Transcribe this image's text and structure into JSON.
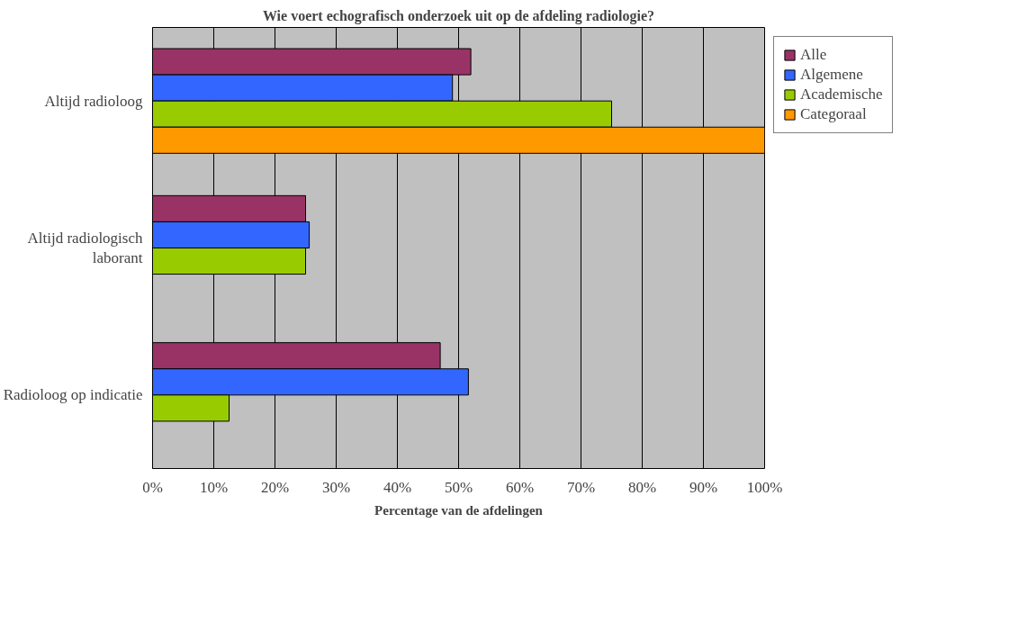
{
  "chart_data": {
    "type": "bar",
    "orientation": "horizontal",
    "title": "Wie voert echografisch onderzoek uit op de afdeling radiologie?",
    "xlabel": "Percentage van de afdelingen",
    "categories": [
      "Altijd radioloog",
      "Altijd radiologisch laborant",
      "Radioloog op indicatie"
    ],
    "series": [
      {
        "name": "Alle",
        "color": "#993366",
        "values": [
          52,
          25,
          47
        ]
      },
      {
        "name": "Algemene",
        "color": "#3366ff",
        "values": [
          49,
          25.6,
          51.6
        ]
      },
      {
        "name": "Academische",
        "color": "#99cc00",
        "values": [
          75,
          25,
          12.5
        ]
      },
      {
        "name": "Categoraal",
        "color": "#ff9900",
        "values": [
          100,
          null,
          null
        ]
      }
    ],
    "xlim": [
      0,
      100
    ],
    "xticks": [
      {
        "value": 0,
        "label": "0%"
      },
      {
        "value": 10,
        "label": "10%"
      },
      {
        "value": 20,
        "label": "20%"
      },
      {
        "value": 30,
        "label": "30%"
      },
      {
        "value": 40,
        "label": "40%"
      },
      {
        "value": 50,
        "label": "50%"
      },
      {
        "value": 60,
        "label": "60%"
      },
      {
        "value": 70,
        "label": "70%"
      },
      {
        "value": 80,
        "label": "80%"
      },
      {
        "value": 90,
        "label": "90%"
      },
      {
        "value": 100,
        "label": "100%"
      }
    ],
    "grid": "x",
    "legend": "right"
  }
}
